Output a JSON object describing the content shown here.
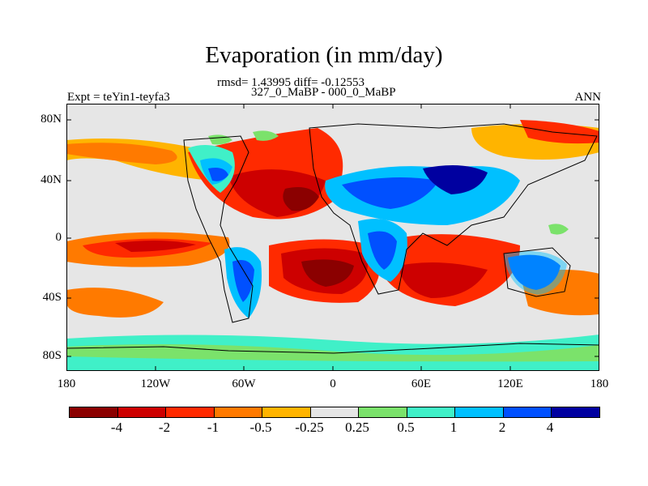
{
  "title": "Evaporation (in mm/day)",
  "stats_line": "rmsd= 1.43995 diff= -0.12553",
  "period_line": "327_0_MaBP - 000_0_MaBP",
  "experiment": "Expt = teYin1-teyfa3",
  "season": "ANN",
  "map": {
    "projection": "cylindrical-equidistant",
    "lat_ticks": [
      "80N",
      "40N",
      "0",
      "40S",
      "80S"
    ],
    "lon_ticks": [
      "180",
      "120W",
      "60W",
      "0",
      "60E",
      "120E",
      "180"
    ],
    "background_color": "#e6e6e6"
  },
  "colorbar": {
    "colors": [
      "#8b0000",
      "#cd0000",
      "#ff2a00",
      "#ff7a00",
      "#ffb400",
      "#e6e6e6",
      "#7be26b",
      "#40f0c8",
      "#00c0ff",
      "#0050ff",
      "#0000a0"
    ],
    "labels": [
      "-4",
      "-2",
      "-1",
      "-0.5",
      "-0.25",
      "0.25",
      "0.5",
      "1",
      "2",
      "4"
    ]
  }
}
